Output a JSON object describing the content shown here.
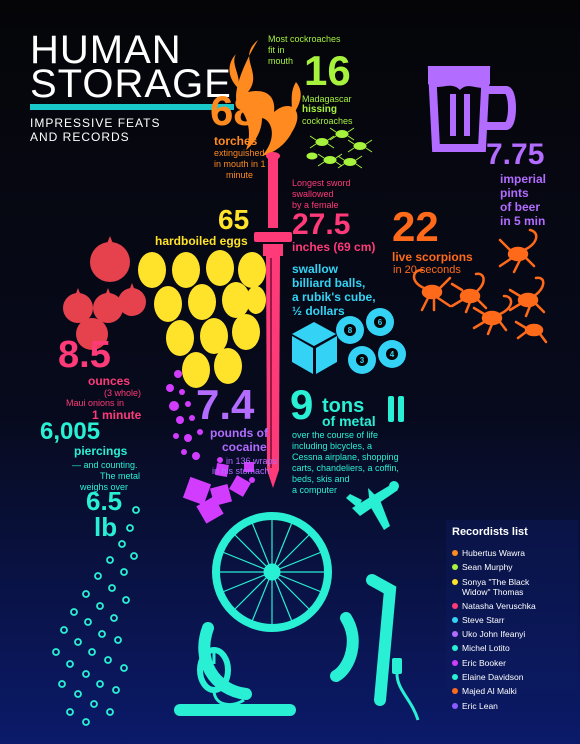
{
  "header": {
    "title_line1": "HUMAN",
    "title_line2": "STORAGE",
    "subtitle_line1": "IMPRESSIVE FEATS",
    "subtitle_line2": "AND RECORDS"
  },
  "torches": {
    "value": "68",
    "label": "torches",
    "desc_line1": "extinguished",
    "desc_line2": "in mouth in 1",
    "desc_line3": "minute"
  },
  "cockroaches": {
    "note_line1": "Most cockroaches",
    "note_line2": "fit in",
    "note_line3": "mouth",
    "value": "16",
    "desc_line1": "Madagascar",
    "desc_line2": "hissing",
    "desc_line3": "cockroaches"
  },
  "beer": {
    "value": "7.75",
    "label_line1": "imperial",
    "label_line2": "pints",
    "label_line3": "of beer",
    "label_line4": "in 5 min"
  },
  "sword": {
    "note_line1": "Longest sword",
    "note_line2": "swallowed",
    "note_line3": "by a female",
    "value": "27.5",
    "label": "inches (69 cm)"
  },
  "eggs": {
    "value": "65",
    "label": "hardboiled eggs"
  },
  "scorpions": {
    "value": "22",
    "label": "live scorpions",
    "desc": "in 20 seconds"
  },
  "swallow": {
    "line1": "swallow",
    "line2": "billiard balls,",
    "line3": "a rubik's cube,",
    "line4": "½ dollars",
    "balls": [
      "8",
      "6",
      "3",
      "4"
    ]
  },
  "onions": {
    "value": "8.5",
    "label": "ounces",
    "note": "(3 whole)",
    "desc_line1": "Maui onions in",
    "desc_line2": "1 minute"
  },
  "piercings": {
    "value": "6,005",
    "label": "piercings",
    "desc_line1": "— and counting.",
    "desc_line2": "The metal",
    "desc_line3": "weighs over",
    "weight": "6.5",
    "unit": "lb"
  },
  "cocaine": {
    "value": "7.4",
    "label_line1": "pounds of",
    "label_line2": "cocaine",
    "desc_line1": "in 136 wraps",
    "desc_line2": "in his stomach"
  },
  "metal": {
    "value": "9",
    "label": "tons",
    "label2": "of metal",
    "desc_line1": "over the course of life",
    "desc_line2": "including bicycles, a",
    "desc_line3": "Cessna airplane, shopping",
    "desc_line4": "carts, chandeliers, a coffin,",
    "desc_line5": "beds, skis and",
    "desc_line6": "a computer"
  },
  "legend": {
    "title": "Recordists list",
    "items": [
      {
        "name": "Hubertus Wawra",
        "color": "#ff8a1f"
      },
      {
        "name": "Sean Murphy",
        "color": "#a6f23d"
      },
      {
        "name": "Sonya \"The Black Widow\" Thomas",
        "color": "#ffe32a"
      },
      {
        "name": "Natasha Veruschka",
        "color": "#ff3a79"
      },
      {
        "name": "Steve Starr",
        "color": "#34d3f5"
      },
      {
        "name": "Uko John Ifeanyi",
        "color": "#b26cff"
      },
      {
        "name": "Michel Lotito",
        "color": "#29f0d4"
      },
      {
        "name": "Eric Booker",
        "color": "#d23cff"
      },
      {
        "name": "Elaine Davidson",
        "color": "#29f0d4"
      },
      {
        "name": "Majed Al Malki",
        "color": "#ff6a1a"
      },
      {
        "name": "Eric Lean",
        "color": "#8a5cff"
      }
    ]
  },
  "colors": {
    "accent_teal": "#19c8c9",
    "orange": "#ff8a1f",
    "lime": "#a6f23d",
    "yellow": "#ffe32a",
    "pink": "#ff3a79",
    "cyan": "#34d3f5",
    "purple": "#b26cff",
    "teal": "#29f0d4",
    "red": "#e5424e",
    "background_top": "#050508",
    "background_bottom": "#0b1a6a"
  },
  "icons": [
    "flame-icon",
    "cockroach-icon",
    "beer-mug-icon",
    "sword-icon",
    "egg-icon",
    "scorpion-icon",
    "rubiks-cube-icon",
    "billiard-ball-icon",
    "onion-icon",
    "piercing-ring-icon",
    "cocaine-wrap-icon",
    "bicycle-wheel-icon",
    "airplane-icon",
    "shopping-cart-icon",
    "computer-mouse-icon",
    "pause-bars-icon"
  ]
}
